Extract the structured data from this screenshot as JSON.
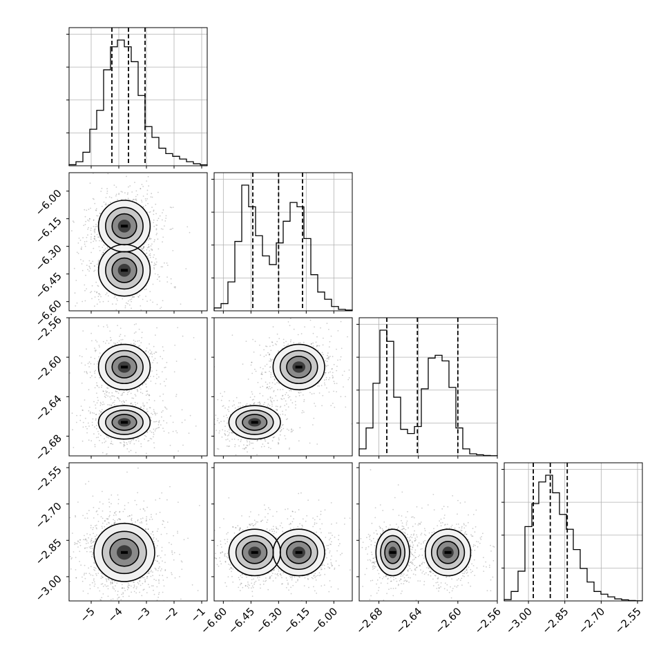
{
  "chart_data": {
    "type": "corner",
    "description_free": true,
    "dims": [
      {
        "range": [
          -5.8,
          -0.8
        ],
        "ticks": [
          -5,
          -4,
          -3,
          -2,
          -1
        ],
        "tick_labels": [
          "−5",
          "−4",
          "−3",
          "−2",
          "−1"
        ],
        "modes": [
          {
            "mu": -3.8,
            "sigma": 0.55,
            "w": 1.0
          }
        ]
      },
      {
        "range": [
          -6.65,
          -5.9
        ],
        "ticks": [
          -6.6,
          -6.45,
          -6.3,
          -6.15,
          -6.0
        ],
        "tick_labels": [
          "−6.60",
          "−6.45",
          "−6.30",
          "−6.15",
          "−6.00"
        ],
        "modes": [
          {
            "mu": -6.43,
            "sigma": 0.07,
            "w": 1.0
          },
          {
            "mu": -6.19,
            "sigma": 0.07,
            "w": 1.0
          }
        ]
      },
      {
        "range": [
          -2.7,
          -2.56
        ],
        "ticks": [
          -2.68,
          -2.64,
          -2.6,
          -2.56
        ],
        "tick_labels": [
          "−2.68",
          "−2.64",
          "−2.60",
          "−2.56"
        ],
        "modes": [
          {
            "mu": -2.666,
            "sigma": 0.0085,
            "w": 1.0
          },
          {
            "mu": -2.61,
            "sigma": 0.0115,
            "w": 1.0
          }
        ]
      },
      {
        "range": [
          -3.1,
          -2.53
        ],
        "ticks": [
          -3.0,
          -2.85,
          -2.7,
          -2.55
        ],
        "tick_labels": [
          "−3.00",
          "−2.85",
          "−2.70",
          "−2.55"
        ],
        "modes": [
          {
            "mu": -2.9,
            "sigma": 0.06,
            "w": 1.0
          }
        ]
      }
    ],
    "histograms": [
      {
        "dim": 0,
        "bins": 20,
        "counts": [
          0.008,
          0.03,
          0.1,
          0.27,
          0.41,
          0.71,
          0.88,
          0.93,
          0.88,
          0.77,
          0.52,
          0.29,
          0.21,
          0.13,
          0.09,
          0.07,
          0.05,
          0.03,
          0.015,
          0.007
        ],
        "quantiles": [
          -4.25,
          -3.65,
          -3.05
        ]
      },
      {
        "dim": 1,
        "bins": 20,
        "counts": [
          0.02,
          0.05,
          0.2,
          0.48,
          0.87,
          0.72,
          0.52,
          0.38,
          0.32,
          0.47,
          0.62,
          0.75,
          0.72,
          0.5,
          0.25,
          0.13,
          0.08,
          0.03,
          0.01,
          0.005
        ],
        "quantiles": [
          -6.44,
          -6.3,
          -6.17
        ]
      },
      {
        "dim": 2,
        "bins": 20,
        "counts": [
          0.05,
          0.2,
          0.52,
          0.9,
          0.82,
          0.42,
          0.19,
          0.16,
          0.21,
          0.48,
          0.7,
          0.72,
          0.68,
          0.49,
          0.2,
          0.05,
          0.015,
          0.008,
          0.003,
          0.001
        ],
        "quantiles": [
          -2.672,
          -2.641,
          -2.6
        ]
      },
      {
        "dim": 3,
        "bins": 20,
        "counts": [
          0.01,
          0.07,
          0.22,
          0.55,
          0.72,
          0.88,
          0.93,
          0.8,
          0.64,
          0.53,
          0.38,
          0.24,
          0.14,
          0.07,
          0.05,
          0.03,
          0.015,
          0.008,
          0.003,
          0.001
        ],
        "quantiles": [
          -2.98,
          -2.91,
          -2.84
        ]
      }
    ]
  }
}
